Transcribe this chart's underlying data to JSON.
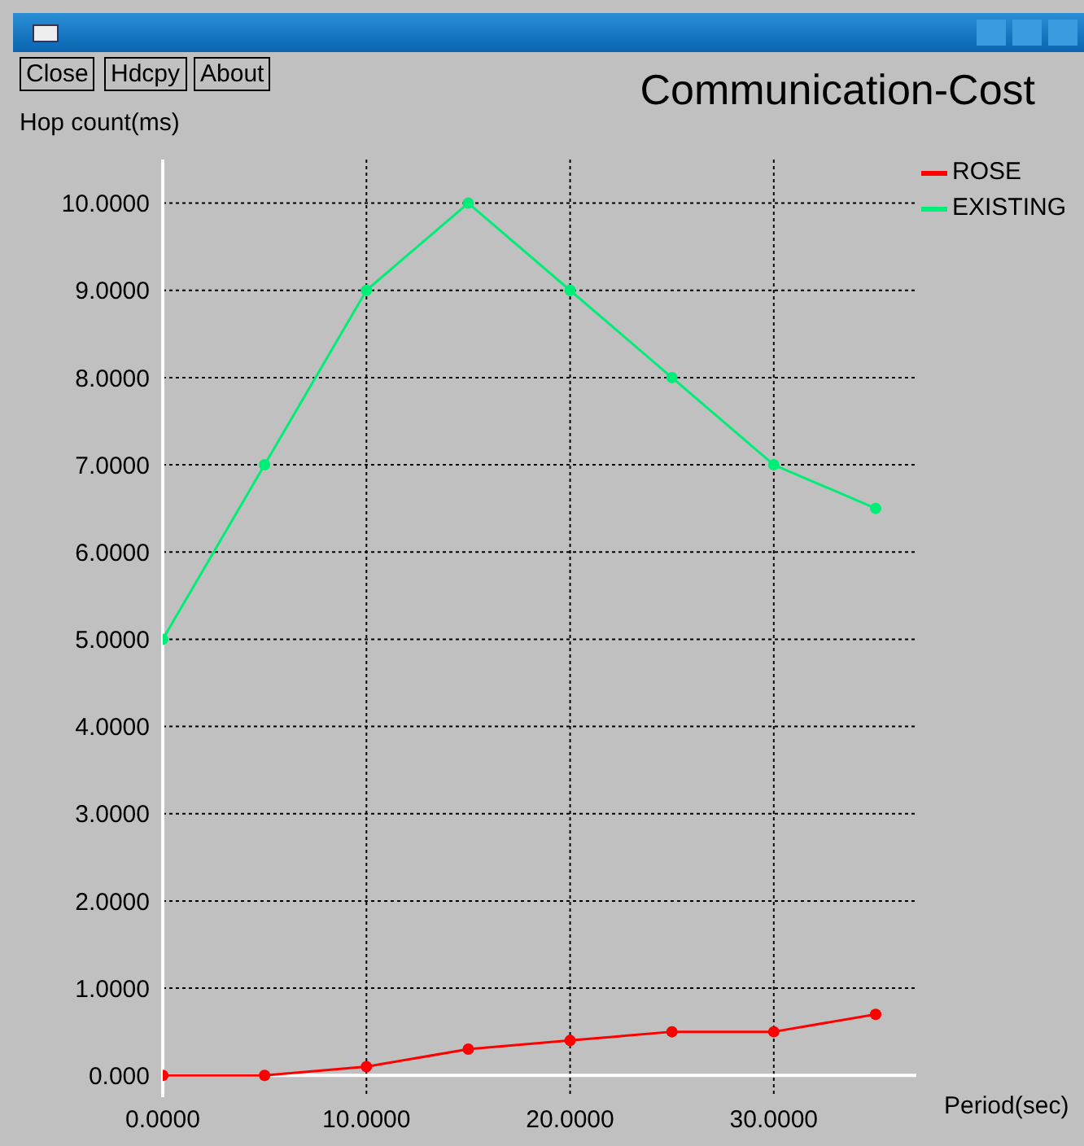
{
  "chart_data": {
    "type": "line",
    "title": "Communication-Cost",
    "xlabel": "Period(sec)",
    "ylabel": "Hop count(ms)",
    "annotations": [
      "Close",
      "Hdcpy",
      "About"
    ],
    "x": [
      0,
      5,
      10,
      15,
      20,
      25,
      30,
      35
    ],
    "series": [
      {
        "name": "ROSE",
        "color": "#ff0000",
        "values": [
          0,
          0,
          0.1,
          0.3,
          0.4,
          0.5,
          0.5,
          0.7
        ]
      },
      {
        "name": "EXISTING",
        "color": "#00ee77",
        "values": [
          5,
          7,
          9,
          10,
          9,
          8,
          7,
          6.5
        ]
      }
    ],
    "xlim": [
      0,
      37
    ],
    "ylim": [
      -0.25,
      10.5
    ],
    "xticks": [
      {
        "value": 0,
        "label": "0.0000"
      },
      {
        "value": 10,
        "label": "10.0000"
      },
      {
        "value": 20,
        "label": "20.0000"
      },
      {
        "value": 30,
        "label": "30.0000"
      }
    ],
    "yticks": [
      {
        "value": 0,
        "label": "0.000"
      },
      {
        "value": 1,
        "label": "1.0000"
      },
      {
        "value": 2,
        "label": "2.0000"
      },
      {
        "value": 3,
        "label": "3.0000"
      },
      {
        "value": 4,
        "label": "4.0000"
      },
      {
        "value": 5,
        "label": "5.0000"
      },
      {
        "value": 6,
        "label": "6.0000"
      },
      {
        "value": 7,
        "label": "7.0000"
      },
      {
        "value": 8,
        "label": "8.0000"
      },
      {
        "value": 9,
        "label": "9.0000"
      },
      {
        "value": 10,
        "label": "10.0000"
      }
    ],
    "grid": true,
    "legend": "top right",
    "marker": "circle",
    "line_style": "solid"
  }
}
